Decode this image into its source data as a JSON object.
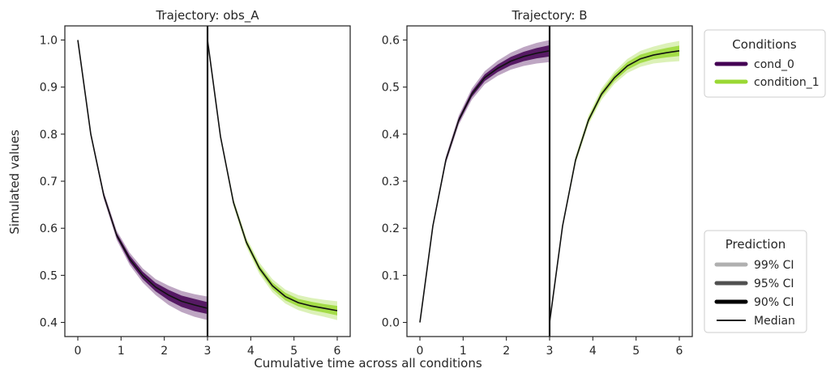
{
  "figure": {
    "ylabel": "Simulated values",
    "xlabel": "Cumulative time across all conditions"
  },
  "legend_conditions": {
    "title": "Conditions",
    "items": [
      {
        "label": "cond_0",
        "color": "#440154"
      },
      {
        "label": "condition_1",
        "color": "#9ad834"
      }
    ]
  },
  "legend_prediction": {
    "title": "Prediction",
    "items": [
      {
        "label": "99% CI",
        "color": "#b0b0b0"
      },
      {
        "label": "95% CI",
        "color": "#505050"
      },
      {
        "label": "90% CI",
        "color": "#000000"
      },
      {
        "label": "Median",
        "color": "#000000"
      }
    ]
  },
  "chart_data": [
    {
      "type": "line",
      "title": "Trajectory: obs_A",
      "xlim": [
        -0.3,
        6.3
      ],
      "ylim": [
        0.37,
        1.03
      ],
      "xticks": [
        0,
        1,
        2,
        3,
        4,
        5,
        6
      ],
      "xtick_labels": [
        "0",
        "1",
        "2",
        "3",
        "4",
        "5",
        "6"
      ],
      "yticks": [
        0.4,
        0.5,
        0.6,
        0.7,
        0.8,
        0.9,
        1.0
      ],
      "ytick_labels": [
        "0.4",
        "0.5",
        "0.6",
        "0.7",
        "0.8",
        "0.9",
        "1.0"
      ],
      "condition_boundaries": [
        3
      ],
      "segments": [
        {
          "condition": "cond_0",
          "color": "#440154",
          "x": [
            0,
            0.3,
            0.6,
            0.9,
            1.2,
            1.5,
            1.8,
            2.1,
            2.4,
            2.7,
            3.0
          ],
          "median": [
            1.0,
            0.8,
            0.67,
            0.585,
            0.535,
            0.5,
            0.475,
            0.458,
            0.445,
            0.437,
            0.43
          ],
          "ci99_lower": [
            1.0,
            0.795,
            0.662,
            0.575,
            0.522,
            0.485,
            0.458,
            0.437,
            0.422,
            0.412,
            0.405
          ],
          "ci99_upper": [
            1.0,
            0.805,
            0.678,
            0.595,
            0.548,
            0.515,
            0.492,
            0.478,
            0.467,
            0.46,
            0.455
          ],
          "ci90_lower": [
            1.0,
            0.798,
            0.666,
            0.58,
            0.528,
            0.492,
            0.466,
            0.447,
            0.433,
            0.424,
            0.418
          ],
          "ci90_upper": [
            1.0,
            0.802,
            0.674,
            0.59,
            0.542,
            0.508,
            0.484,
            0.469,
            0.457,
            0.45,
            0.443
          ]
        },
        {
          "condition": "condition_1",
          "color": "#9ad834",
          "x": [
            3.0,
            3.3,
            3.6,
            3.9,
            4.2,
            4.5,
            4.8,
            5.1,
            5.4,
            5.7,
            6.0
          ],
          "median": [
            1.0,
            0.795,
            0.655,
            0.57,
            0.515,
            0.478,
            0.455,
            0.442,
            0.435,
            0.43,
            0.425
          ],
          "ci99_lower": [
            1.0,
            0.79,
            0.647,
            0.56,
            0.503,
            0.464,
            0.44,
            0.426,
            0.418,
            0.412,
            0.405
          ],
          "ci99_upper": [
            1.0,
            0.8,
            0.663,
            0.58,
            0.527,
            0.492,
            0.47,
            0.458,
            0.452,
            0.448,
            0.445
          ],
          "ci90_lower": [
            1.0,
            0.793,
            0.651,
            0.565,
            0.509,
            0.471,
            0.447,
            0.434,
            0.426,
            0.421,
            0.415
          ],
          "ci90_upper": [
            1.0,
            0.797,
            0.659,
            0.575,
            0.521,
            0.485,
            0.463,
            0.45,
            0.444,
            0.439,
            0.435
          ]
        }
      ]
    },
    {
      "type": "line",
      "title": "Trajectory: B",
      "xlim": [
        -0.3,
        6.3
      ],
      "ylim": [
        -0.03,
        0.63
      ],
      "xticks": [
        0,
        1,
        2,
        3,
        4,
        5,
        6
      ],
      "xtick_labels": [
        "0",
        "1",
        "2",
        "3",
        "4",
        "5",
        "6"
      ],
      "yticks": [
        0.0,
        0.1,
        0.2,
        0.3,
        0.4,
        0.5,
        0.6
      ],
      "ytick_labels": [
        "0.0",
        "0.1",
        "0.2",
        "0.3",
        "0.4",
        "0.5",
        "0.6"
      ],
      "condition_boundaries": [
        3
      ],
      "segments": [
        {
          "condition": "cond_0",
          "color": "#440154",
          "x": [
            0,
            0.3,
            0.6,
            0.9,
            1.2,
            1.5,
            1.8,
            2.1,
            2.4,
            2.7,
            3.0
          ],
          "median": [
            0.0,
            0.205,
            0.345,
            0.43,
            0.485,
            0.52,
            0.54,
            0.555,
            0.565,
            0.572,
            0.577
          ],
          "ci99_lower": [
            0.0,
            0.2,
            0.337,
            0.42,
            0.473,
            0.506,
            0.524,
            0.537,
            0.545,
            0.55,
            0.553
          ],
          "ci99_upper": [
            0.0,
            0.21,
            0.353,
            0.44,
            0.497,
            0.534,
            0.556,
            0.573,
            0.585,
            0.594,
            0.6
          ],
          "ci90_lower": [
            0.0,
            0.202,
            0.341,
            0.425,
            0.479,
            0.513,
            0.532,
            0.546,
            0.555,
            0.561,
            0.565
          ],
          "ci90_upper": [
            0.0,
            0.208,
            0.349,
            0.435,
            0.491,
            0.527,
            0.548,
            0.564,
            0.575,
            0.583,
            0.589
          ]
        },
        {
          "condition": "condition_1",
          "color": "#9ad834",
          "x": [
            3.0,
            3.3,
            3.6,
            3.9,
            4.2,
            4.5,
            4.8,
            5.1,
            5.4,
            5.7,
            6.0
          ],
          "median": [
            0.0,
            0.205,
            0.345,
            0.43,
            0.485,
            0.52,
            0.545,
            0.56,
            0.568,
            0.573,
            0.577
          ],
          "ci99_lower": [
            0.0,
            0.2,
            0.337,
            0.42,
            0.473,
            0.507,
            0.53,
            0.543,
            0.55,
            0.553,
            0.555
          ],
          "ci99_upper": [
            0.0,
            0.21,
            0.353,
            0.44,
            0.497,
            0.533,
            0.56,
            0.577,
            0.586,
            0.593,
            0.598
          ],
          "ci90_lower": [
            0.0,
            0.202,
            0.341,
            0.425,
            0.479,
            0.513,
            0.537,
            0.551,
            0.559,
            0.563,
            0.566
          ],
          "ci90_upper": [
            0.0,
            0.208,
            0.349,
            0.435,
            0.491,
            0.527,
            0.553,
            0.569,
            0.577,
            0.583,
            0.588
          ]
        }
      ]
    }
  ]
}
